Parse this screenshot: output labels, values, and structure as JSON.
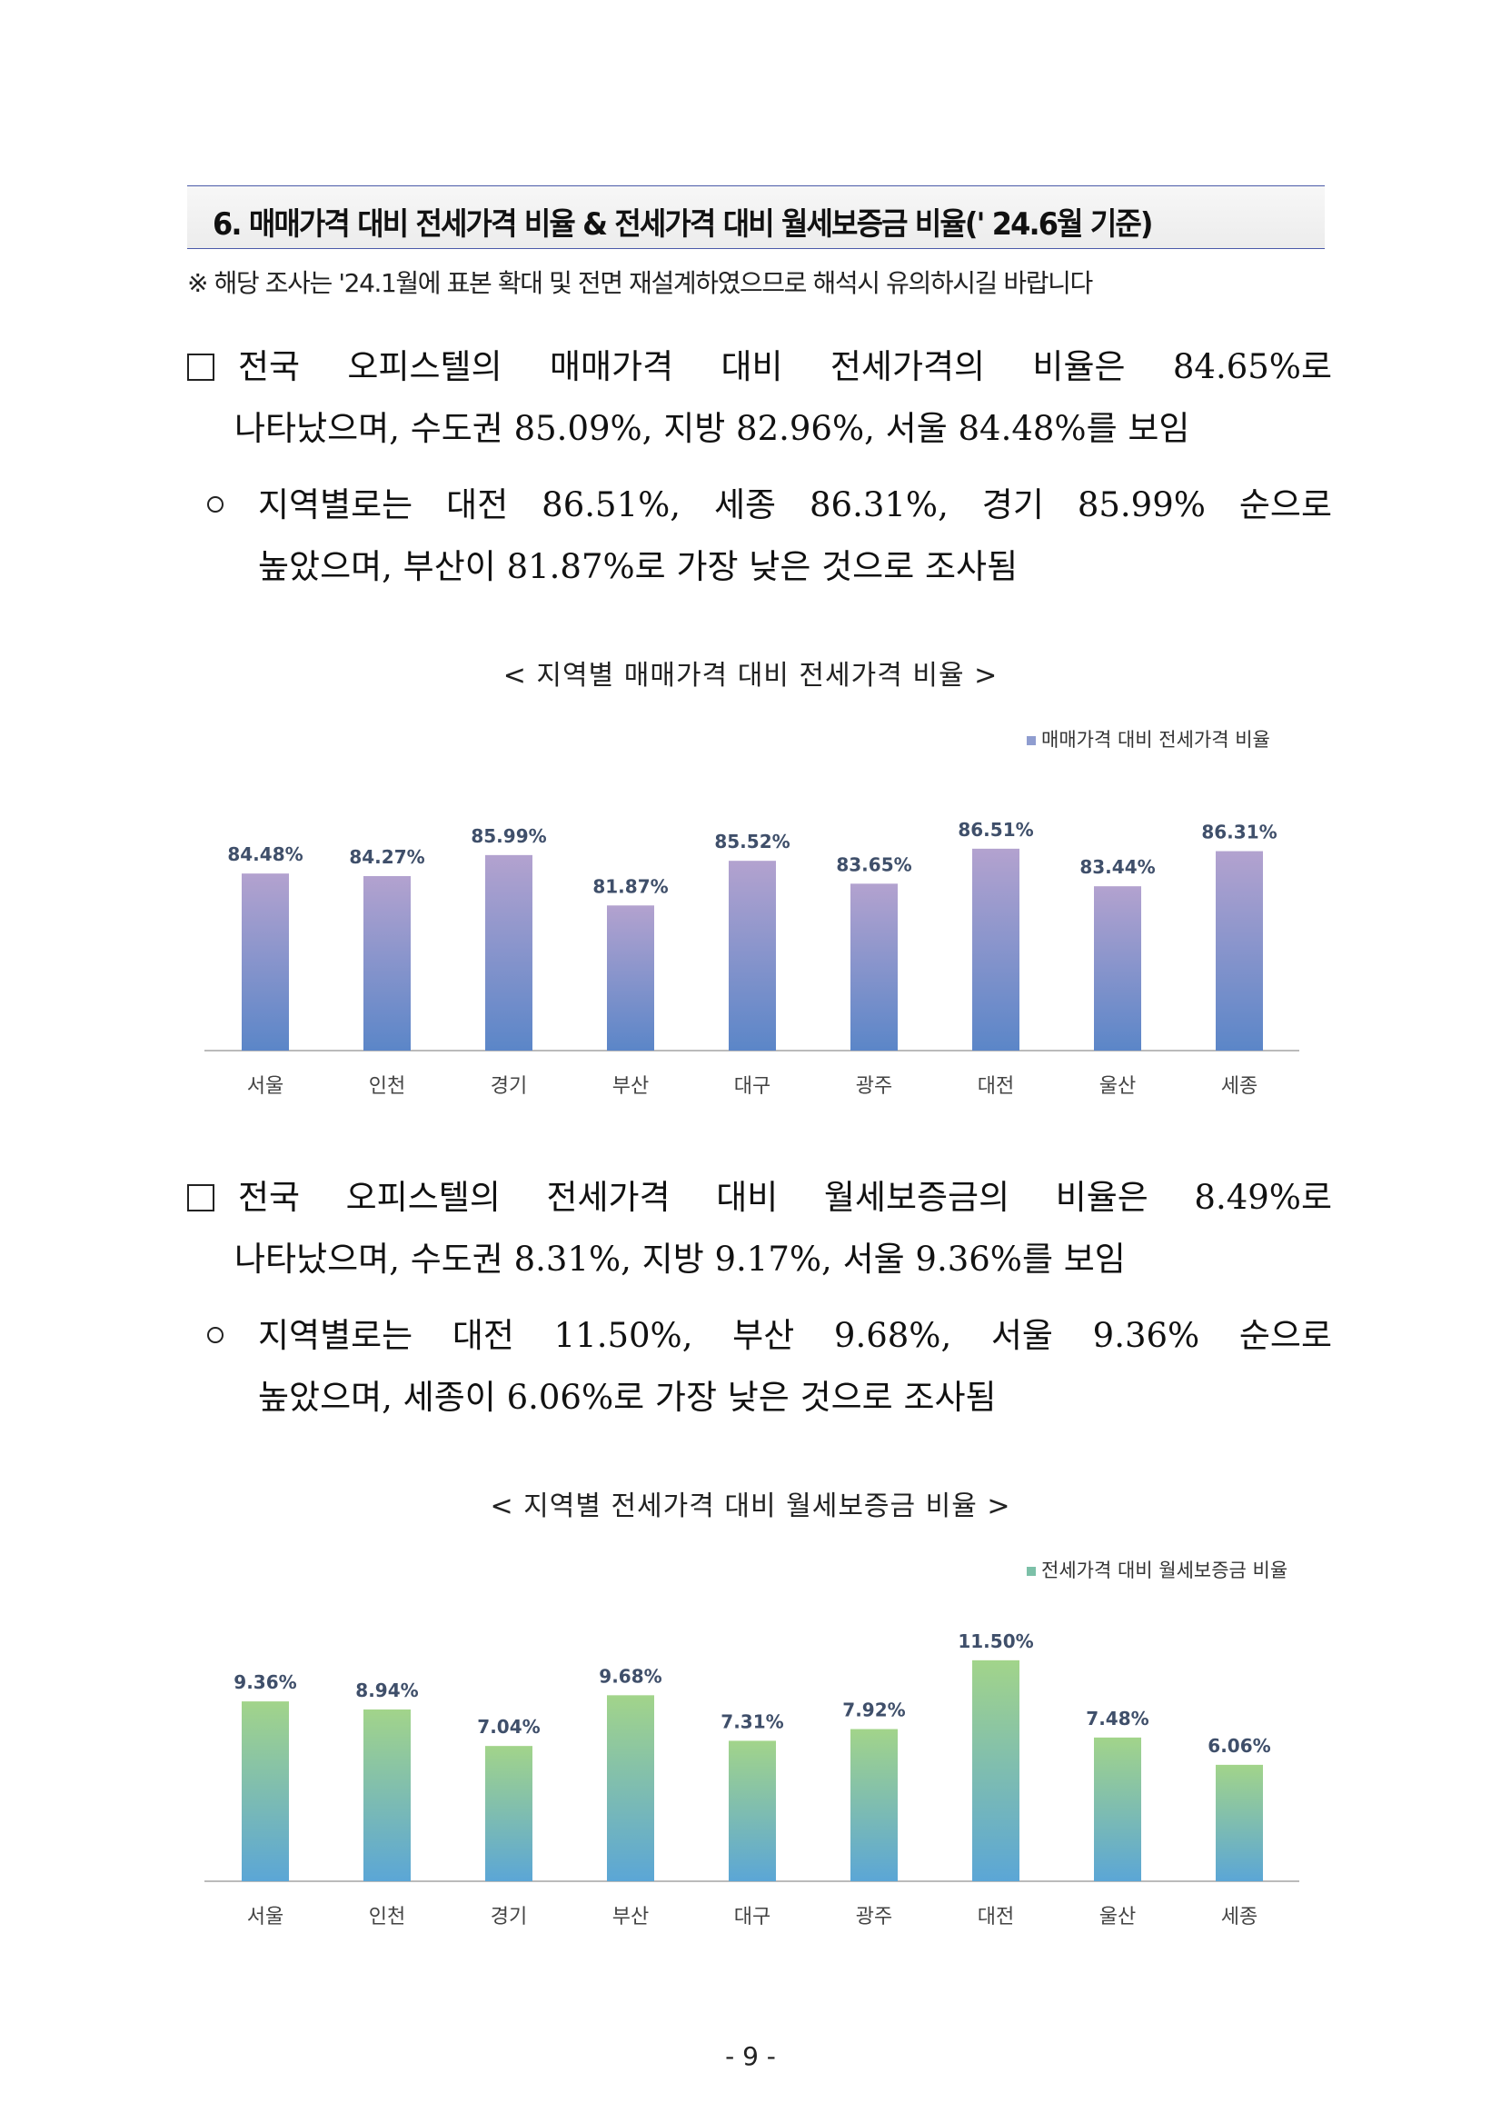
{
  "section": {
    "title": "6. 매매가격 대비 전세가격 비율 & 전세가격 대비 월세보증금 비율(' 24.6월 기준)",
    "note": "※ 해당 조사는 '24.1월에 표본 확대 및 전면 재설계하였으므로 해석시 유의하시길 바랍니다"
  },
  "block1": {
    "line1": "전국 오피스텔의 매매가격 대비 전세가격의 비율은 84.65%로",
    "line2": "나타났으며, 수도권 85.09%, 지방 82.96%, 서울 84.48%를 보임",
    "sub1": "지역별로는 대전 86.51%, 세종 86.31%, 경기 85.99% 순으로",
    "sub2": "높았으며, 부산이 81.87%로 가장 낮은 것으로 조사됨"
  },
  "chart1_caption": "< 지역별 매매가격 대비 전세가격 비율 >",
  "block2": {
    "line1": "전국 오피스텔의 전세가격 대비 월세보증금의 비율은 8.49%로",
    "line2": "나타났으며, 수도권 8.31%, 지방 9.17%, 서울 9.36%를 보임",
    "sub1": "지역별로는 대전 11.50%, 부산 9.68%, 서울 9.36% 순으로",
    "sub2": "높았으며, 세종이 6.06%로 가장 낮은 것으로 조사됨"
  },
  "chart2_caption": "< 지역별 전세가격 대비 월세보증금 비율 >",
  "page_number": "- 9 -",
  "chart_data": [
    {
      "type": "bar",
      "categories": [
        "서울",
        "인천",
        "경기",
        "부산",
        "대구",
        "광주",
        "대전",
        "울산",
        "세종"
      ],
      "series": [
        {
          "name": "매매가격 대비 전세가격 비율",
          "values": [
            84.48,
            84.27,
            85.99,
            81.87,
            85.52,
            83.65,
            86.51,
            83.44,
            86.31
          ]
        }
      ],
      "value_labels": [
        "84.48%",
        "84.27%",
        "85.99%",
        "81.87%",
        "85.52%",
        "83.65%",
        "86.51%",
        "83.44%",
        "86.31%"
      ],
      "legend_position": "top-right",
      "grid": false,
      "colors": {
        "top": "#b3a2cf",
        "bottom": "#5b86c8",
        "legend": "#8f9dd0"
      }
    },
    {
      "type": "bar",
      "categories": [
        "서울",
        "인천",
        "경기",
        "부산",
        "대구",
        "광주",
        "대전",
        "울산",
        "세종"
      ],
      "series": [
        {
          "name": "전세가격 대비 월세보증금 비율",
          "values": [
            9.36,
            8.94,
            7.04,
            9.68,
            7.31,
            7.92,
            11.5,
            7.48,
            6.06
          ]
        }
      ],
      "value_labels": [
        "9.36%",
        "8.94%",
        "7.04%",
        "9.68%",
        "7.31%",
        "7.92%",
        "11.50%",
        "7.48%",
        "6.06%"
      ],
      "legend_position": "top-right",
      "grid": false,
      "colors": {
        "top": "#a2d48a",
        "bottom": "#5ba6d6",
        "legend": "#7cc0a8"
      }
    }
  ]
}
